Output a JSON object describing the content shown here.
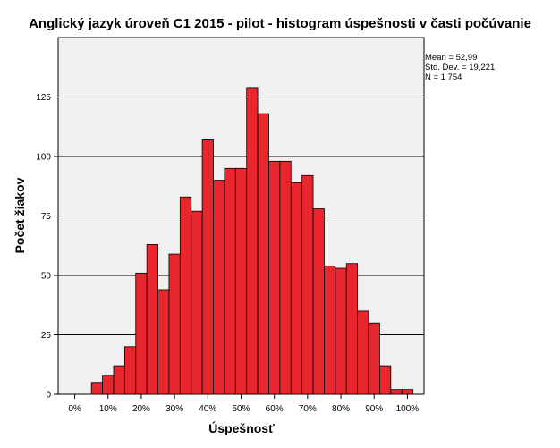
{
  "chart_data": {
    "type": "bar",
    "title": "Anglický jazyk úroveň C1 2015 - pilot - histogram úspešnosti v časti počúvanie",
    "xlabel": "Úspešnosť",
    "ylabel": "Počet žiakov",
    "x_ticks": [
      "0%",
      "10%",
      "20%",
      "30%",
      "40%",
      "50%",
      "60%",
      "70%",
      "80%",
      "90%",
      "100%"
    ],
    "y_ticks": [
      "0",
      "25",
      "50",
      "75",
      "100",
      "125"
    ],
    "xlim": [
      -5,
      105
    ],
    "ylim": [
      0,
      150
    ],
    "bin_width": 3.33,
    "grid": true,
    "bar_color": "#e8262d",
    "plot_background": "#f0f0f0",
    "bins": [
      {
        "x_start": 5.0,
        "value": 5
      },
      {
        "x_start": 8.33,
        "value": 8
      },
      {
        "x_start": 11.67,
        "value": 12
      },
      {
        "x_start": 15.0,
        "value": 20
      },
      {
        "x_start": 18.33,
        "value": 51
      },
      {
        "x_start": 21.67,
        "value": 63
      },
      {
        "x_start": 25.0,
        "value": 44
      },
      {
        "x_start": 28.33,
        "value": 59
      },
      {
        "x_start": 31.67,
        "value": 83
      },
      {
        "x_start": 35.0,
        "value": 77
      },
      {
        "x_start": 38.33,
        "value": 107
      },
      {
        "x_start": 41.67,
        "value": 90
      },
      {
        "x_start": 45.0,
        "value": 95
      },
      {
        "x_start": 48.33,
        "value": 95
      },
      {
        "x_start": 51.67,
        "value": 129
      },
      {
        "x_start": 55.0,
        "value": 118
      },
      {
        "x_start": 58.33,
        "value": 98
      },
      {
        "x_start": 61.67,
        "value": 98
      },
      {
        "x_start": 65.0,
        "value": 89
      },
      {
        "x_start": 68.33,
        "value": 92
      },
      {
        "x_start": 71.67,
        "value": 78
      },
      {
        "x_start": 75.0,
        "value": 54
      },
      {
        "x_start": 78.33,
        "value": 53
      },
      {
        "x_start": 81.67,
        "value": 55
      },
      {
        "x_start": 85.0,
        "value": 35
      },
      {
        "x_start": 88.33,
        "value": 30
      },
      {
        "x_start": 91.67,
        "value": 12
      },
      {
        "x_start": 95.0,
        "value": 2
      },
      {
        "x_start": 98.33,
        "value": 2
      }
    ],
    "stats": [
      "Mean = 52,99",
      "Std. Dev. = 19,221",
      "N = 1 754"
    ]
  }
}
